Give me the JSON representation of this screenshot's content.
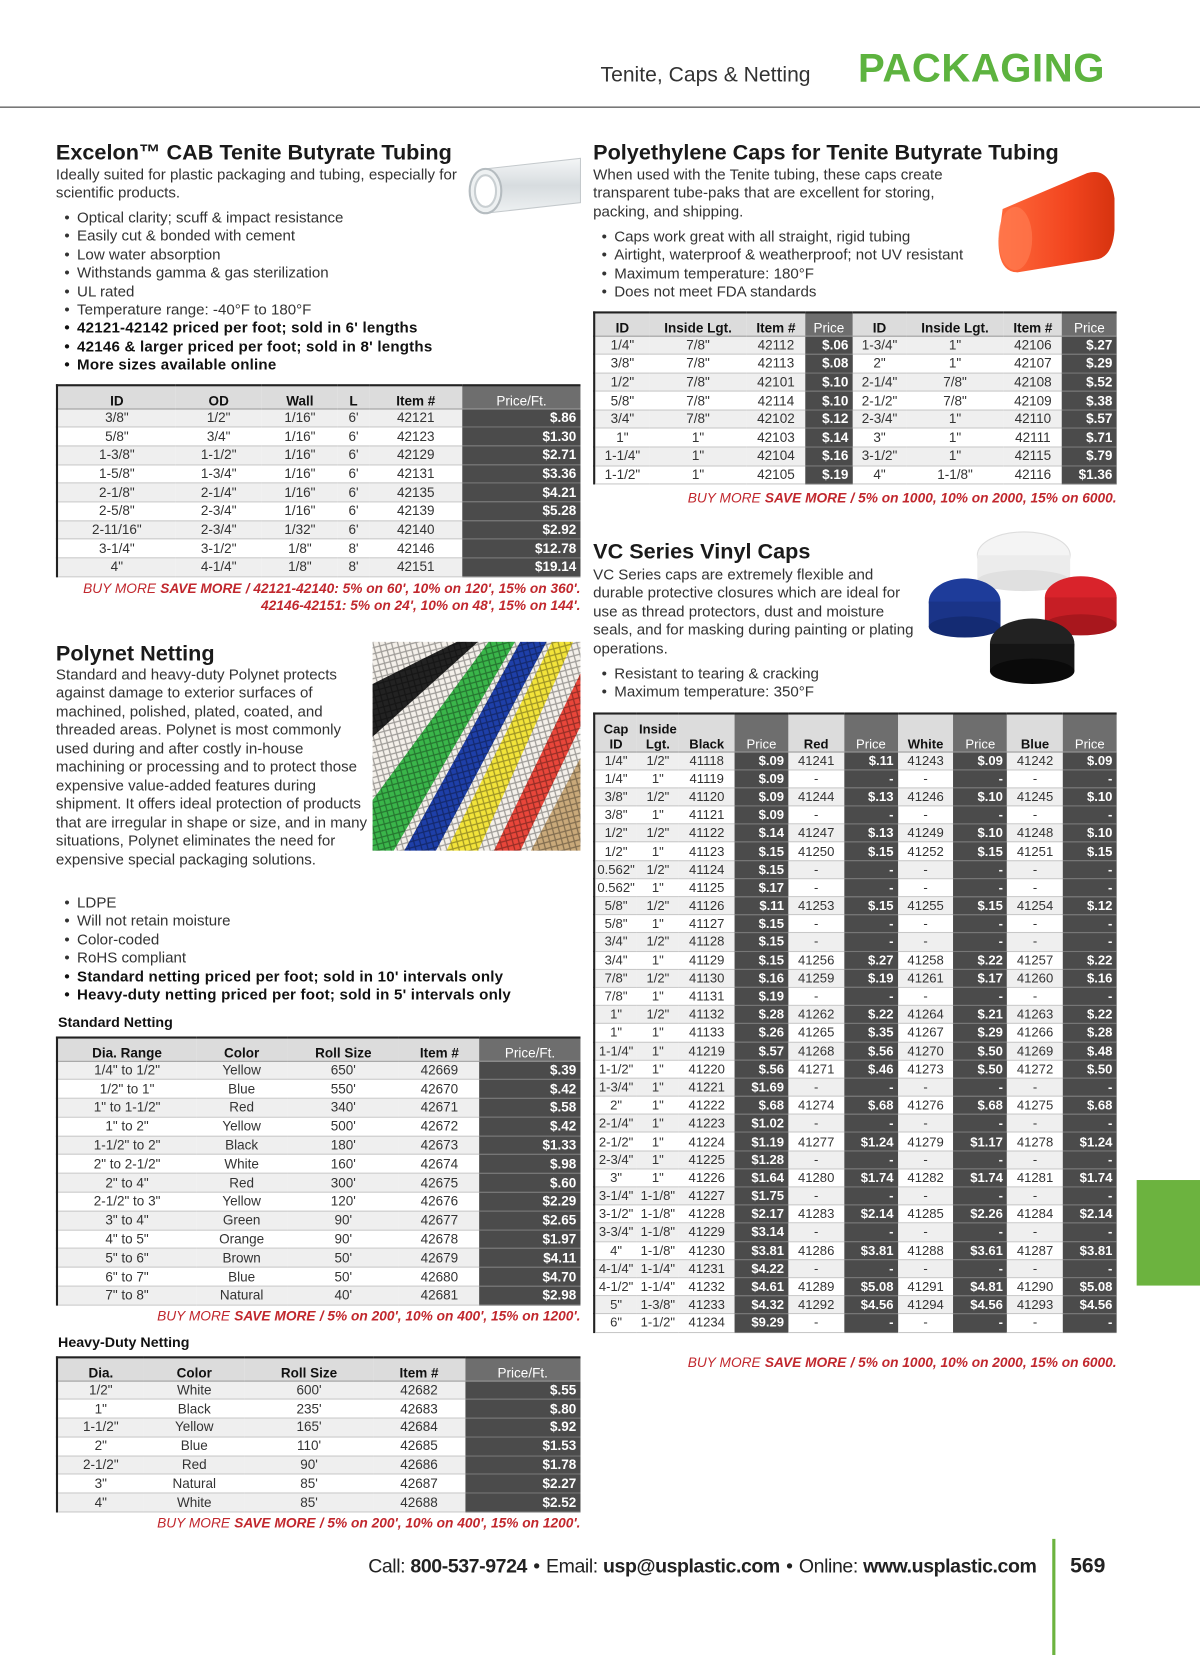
{
  "header": {
    "section": "Tenite, Caps & Netting",
    "title": "PACKAGING"
  },
  "excelon": {
    "title": "Excelon™ CAB Tenite Butyrate Tubing",
    "description": "Ideally suited for plastic packaging and tubing, especially for scientific products.",
    "bullets": [
      "Optical clarity; scuff & impact resistance",
      "Easily cut & bonded with cement",
      "Low water absorption",
      "Withstands gamma & gas sterilization",
      "UL rated",
      "Temperature range: -40°F to 180°F"
    ],
    "bold_bullets": [
      "42121-42142 priced per foot; sold in 6' lengths",
      "42146 & larger priced per foot; sold in 8' lengths",
      "More sizes available online"
    ],
    "table": {
      "headers": [
        "ID",
        "OD",
        "Wall",
        "L",
        "Item #",
        "Price/Ft."
      ],
      "rows": [
        [
          "3/8\"",
          "1/2\"",
          "1/16\"",
          "6'",
          "42121",
          "$.86"
        ],
        [
          "5/8\"",
          "3/4\"",
          "1/16\"",
          "6'",
          "42123",
          "$1.30"
        ],
        [
          "1-3/8\"",
          "1-1/2\"",
          "1/16\"",
          "6'",
          "42129",
          "$2.71"
        ],
        [
          "1-5/8\"",
          "1-3/4\"",
          "1/16\"",
          "6'",
          "42131",
          "$3.36"
        ],
        [
          "2-1/8\"",
          "2-1/4\"",
          "1/16\"",
          "6'",
          "42135",
          "$4.21"
        ],
        [
          "2-5/8\"",
          "2-3/4\"",
          "1/16\"",
          "6'",
          "42139",
          "$5.28"
        ],
        [
          "2-11/16\"",
          "2-3/4\"",
          "1/32\"",
          "6'",
          "42140",
          "$2.92"
        ],
        [
          "3-1/4\"",
          "3-1/2\"",
          "1/8\"",
          "8'",
          "42146",
          "$12.78"
        ],
        [
          "4\"",
          "4-1/4\"",
          "1/8\"",
          "8'",
          "42151",
          "$19.14"
        ]
      ]
    },
    "buy_more": {
      "lead": "BUY MORE",
      "emphasis": "SAVE MORE",
      "terms": [
        "/ 42121-42140: 5% on 60', 10% on 120', 15% on 360'.",
        "42146-42151: 5% on 24', 10% on 48', 15% on 144'."
      ]
    }
  },
  "polynet": {
    "title": "Polynet Netting",
    "description": "Standard and heavy-duty Polynet protects against damage to exterior surfaces of machined, polished, plated, coated, and threaded areas. Polynet is most commonly used during and after costly in-house machining or processing and to protect those expensive value-added features during shipment. It offers ideal protection of products that are irregular in shape or size, and in many situations, Polynet eliminates the need for expensive special packaging solutions.",
    "bullets": [
      "LDPE",
      "Will not retain moisture",
      "Color-coded",
      "RoHS compliant"
    ],
    "bold_bullets": [
      "Standard netting priced per foot; sold in 10' intervals only",
      "Heavy-duty netting priced per foot; sold in 5' intervals only"
    ],
    "standard": {
      "label": "Standard Netting",
      "table": {
        "headers": [
          "Dia. Range",
          "Color",
          "Roll Size",
          "Item #",
          "Price/Ft."
        ],
        "rows": [
          [
            "1/4\" to 1/2\"",
            "Yellow",
            "650'",
            "42669",
            "$.39"
          ],
          [
            "1/2\" to 1\"",
            "Blue",
            "550'",
            "42670",
            "$.42"
          ],
          [
            "1\" to 1-1/2\"",
            "Red",
            "340'",
            "42671",
            "$.58"
          ],
          [
            "1\" to 2\"",
            "Yellow",
            "500'",
            "42672",
            "$.42"
          ],
          [
            "1-1/2\" to 2\"",
            "Black",
            "180'",
            "42673",
            "$1.33"
          ],
          [
            "2\" to 2-1/2\"",
            "White",
            "160'",
            "42674",
            "$.98"
          ],
          [
            "2\" to 4\"",
            "Red",
            "300'",
            "42675",
            "$.60"
          ],
          [
            "2-1/2\" to 3\"",
            "Yellow",
            "120'",
            "42676",
            "$2.29"
          ],
          [
            "3\" to 4\"",
            "Green",
            "90'",
            "42677",
            "$2.65"
          ],
          [
            "4\" to 5\"",
            "Orange",
            "90'",
            "42678",
            "$1.97"
          ],
          [
            "5\" to 6\"",
            "Brown",
            "50'",
            "42679",
            "$4.11"
          ],
          [
            "6\" to 7\"",
            "Blue",
            "50'",
            "42680",
            "$4.70"
          ],
          [
            "7\" to 8\"",
            "Natural",
            "40'",
            "42681",
            "$2.98"
          ]
        ]
      },
      "buy_more": {
        "lead": "BUY MORE",
        "emphasis": "SAVE MORE",
        "terms": [
          "/ 5% on 200', 10% on 400', 15% on 1200'."
        ]
      }
    },
    "heavy_duty": {
      "label": "Heavy-Duty Netting",
      "table": {
        "headers": [
          "Dia.",
          "Color",
          "Roll Size",
          "Item #",
          "Price/Ft."
        ],
        "rows": [
          [
            "1/2\"",
            "White",
            "600'",
            "42682",
            "$.55"
          ],
          [
            "1\"",
            "Black",
            "235'",
            "42683",
            "$.80"
          ],
          [
            "1-1/2\"",
            "Yellow",
            "165'",
            "42684",
            "$.92"
          ],
          [
            "2\"",
            "Blue",
            "110'",
            "42685",
            "$1.53"
          ],
          [
            "2-1/2\"",
            "Red",
            "90'",
            "42686",
            "$1.78"
          ],
          [
            "3\"",
            "Natural",
            "85'",
            "42687",
            "$2.27"
          ],
          [
            "4\"",
            "White",
            "85'",
            "42688",
            "$2.52"
          ]
        ]
      },
      "buy_more": {
        "lead": "BUY MORE",
        "emphasis": "SAVE MORE",
        "terms": [
          "/ 5% on 200', 10% on 400', 15% on 1200'."
        ]
      }
    }
  },
  "poly_caps": {
    "title": "Polyethylene Caps for Tenite Butyrate Tubing",
    "description": "When used with the Tenite tubing, these caps create transparent tube-paks that are excellent for storing, packing, and shipping.",
    "bullets": [
      "Caps work great with all straight, rigid tubing",
      "Airtight, waterproof & weatherproof; not UV resistant",
      "Maximum temperature: 180°F",
      "Does not meet FDA standards"
    ],
    "table": {
      "headers": [
        "ID",
        "Inside Lgt.",
        "Item #",
        "Price",
        "ID",
        "Inside Lgt.",
        "Item #",
        "Price"
      ],
      "rows": [
        [
          "1/4\"",
          "7/8\"",
          "42112",
          "$.06",
          "1-3/4\"",
          "1\"",
          "42106",
          "$.27"
        ],
        [
          "3/8\"",
          "7/8\"",
          "42113",
          "$.08",
          "2\"",
          "1\"",
          "42107",
          "$.29"
        ],
        [
          "1/2\"",
          "7/8\"",
          "42101",
          "$.10",
          "2-1/4\"",
          "7/8\"",
          "42108",
          "$.52"
        ],
        [
          "5/8\"",
          "7/8\"",
          "42114",
          "$.10",
          "2-1/2\"",
          "7/8\"",
          "42109",
          "$.38"
        ],
        [
          "3/4\"",
          "7/8\"",
          "42102",
          "$.12",
          "2-3/4\"",
          "1\"",
          "42110",
          "$.57"
        ],
        [
          "1\"",
          "1\"",
          "42103",
          "$.14",
          "3\"",
          "1\"",
          "42111",
          "$.71"
        ],
        [
          "1-1/4\"",
          "1\"",
          "42104",
          "$.16",
          "3-1/2\"",
          "1\"",
          "42115",
          "$.79"
        ],
        [
          "1-1/2\"",
          "1\"",
          "42105",
          "$.19",
          "4\"",
          "1-1/8\"",
          "42116",
          "$1.36"
        ]
      ]
    },
    "buy_more": {
      "lead": "BUY MORE",
      "emphasis": "SAVE MORE",
      "terms": [
        "/ 5% on 1000, 10% on 2000, 15% on 6000."
      ]
    }
  },
  "vc_caps": {
    "title": "VC Series Vinyl Caps",
    "description": "VC Series caps are extremely flexible and durable protective closures which are ideal for use as thread protectors, dust and moisture seals, and for masking during painting or plating operations.",
    "bullets": [
      "Resistant to tearing & cracking",
      "Maximum temperature: 350°F"
    ],
    "table": {
      "headers": [
        "Cap ID",
        "Inside Lgt.",
        "Black",
        "Price",
        "Red",
        "Price",
        "White",
        "Price",
        "Blue",
        "Price"
      ],
      "rows": [
        [
          "1/4\"",
          "1/2\"",
          "41118",
          "$.09",
          "41241",
          "$.11",
          "41243",
          "$.09",
          "41242",
          "$.09"
        ],
        [
          "1/4\"",
          "1\"",
          "41119",
          "$.09",
          "-",
          "-",
          "-",
          "-",
          "-",
          "-"
        ],
        [
          "3/8\"",
          "1/2\"",
          "41120",
          "$.09",
          "41244",
          "$.13",
          "41246",
          "$.10",
          "41245",
          "$.10"
        ],
        [
          "3/8\"",
          "1\"",
          "41121",
          "$.09",
          "-",
          "-",
          "-",
          "-",
          "-",
          "-"
        ],
        [
          "1/2\"",
          "1/2\"",
          "41122",
          "$.14",
          "41247",
          "$.13",
          "41249",
          "$.10",
          "41248",
          "$.10"
        ],
        [
          "1/2\"",
          "1\"",
          "41123",
          "$.15",
          "41250",
          "$.15",
          "41252",
          "$.15",
          "41251",
          "$.15"
        ],
        [
          "0.562\"",
          "1/2\"",
          "41124",
          "$.15",
          "-",
          "-",
          "-",
          "-",
          "-",
          "-"
        ],
        [
          "0.562\"",
          "1\"",
          "41125",
          "$.17",
          "-",
          "-",
          "-",
          "-",
          "-",
          "-"
        ],
        [
          "5/8\"",
          "1/2\"",
          "41126",
          "$.11",
          "41253",
          "$.15",
          "41255",
          "$.15",
          "41254",
          "$.12"
        ],
        [
          "5/8\"",
          "1\"",
          "41127",
          "$.15",
          "-",
          "-",
          "-",
          "-",
          "-",
          "-"
        ],
        [
          "3/4\"",
          "1/2\"",
          "41128",
          "$.15",
          "-",
          "-",
          "-",
          "-",
          "-",
          "-"
        ],
        [
          "3/4\"",
          "1\"",
          "41129",
          "$.15",
          "41256",
          "$.27",
          "41258",
          "$.22",
          "41257",
          "$.22"
        ],
        [
          "7/8\"",
          "1/2\"",
          "41130",
          "$.16",
          "41259",
          "$.19",
          "41261",
          "$.17",
          "41260",
          "$.16"
        ],
        [
          "7/8\"",
          "1\"",
          "41131",
          "$.19",
          "-",
          "-",
          "-",
          "-",
          "-",
          "-"
        ],
        [
          "1\"",
          "1/2\"",
          "41132",
          "$.28",
          "41262",
          "$.22",
          "41264",
          "$.21",
          "41263",
          "$.22"
        ],
        [
          "1\"",
          "1\"",
          "41133",
          "$.26",
          "41265",
          "$.35",
          "41267",
          "$.29",
          "41266",
          "$.28"
        ],
        [
          "1-1/4\"",
          "1\"",
          "41219",
          "$.57",
          "41268",
          "$.56",
          "41270",
          "$.50",
          "41269",
          "$.48"
        ],
        [
          "1-1/2\"",
          "1\"",
          "41220",
          "$.56",
          "41271",
          "$.46",
          "41273",
          "$.50",
          "41272",
          "$.50"
        ],
        [
          "1-3/4\"",
          "1\"",
          "41221",
          "$1.69",
          "-",
          "-",
          "-",
          "-",
          "-",
          "-"
        ],
        [
          "2\"",
          "1\"",
          "41222",
          "$.68",
          "41274",
          "$.68",
          "41276",
          "$.68",
          "41275",
          "$.68"
        ],
        [
          "2-1/4\"",
          "1\"",
          "41223",
          "$1.02",
          "-",
          "-",
          "-",
          "-",
          "-",
          "-"
        ],
        [
          "2-1/2\"",
          "1\"",
          "41224",
          "$1.19",
          "41277",
          "$1.24",
          "41279",
          "$1.17",
          "41278",
          "$1.24"
        ],
        [
          "2-3/4\"",
          "1\"",
          "41225",
          "$1.28",
          "-",
          "-",
          "-",
          "-",
          "-",
          "-"
        ],
        [
          "3\"",
          "1\"",
          "41226",
          "$1.64",
          "41280",
          "$1.74",
          "41282",
          "$1.74",
          "41281",
          "$1.74"
        ],
        [
          "3-1/4\"",
          "1-1/8\"",
          "41227",
          "$1.75",
          "-",
          "-",
          "-",
          "-",
          "-",
          "-"
        ],
        [
          "3-1/2\"",
          "1-1/8\"",
          "41228",
          "$2.17",
          "41283",
          "$2.14",
          "41285",
          "$2.26",
          "41284",
          "$2.14"
        ],
        [
          "3-3/4\"",
          "1-1/8\"",
          "41229",
          "$3.14",
          "-",
          "-",
          "-",
          "-",
          "-",
          "-"
        ],
        [
          "4\"",
          "1-1/8\"",
          "41230",
          "$3.81",
          "41286",
          "$3.81",
          "41288",
          "$3.61",
          "41287",
          "$3.81"
        ],
        [
          "4-1/4\"",
          "1-1/4\"",
          "41231",
          "$4.22",
          "-",
          "-",
          "-",
          "-",
          "-",
          "-"
        ],
        [
          "4-1/2\"",
          "1-1/4\"",
          "41232",
          "$4.61",
          "41289",
          "$5.08",
          "41291",
          "$4.81",
          "41290",
          "$5.08"
        ],
        [
          "5\"",
          "1-3/8\"",
          "41233",
          "$4.32",
          "41292",
          "$4.56",
          "41294",
          "$4.56",
          "41293",
          "$4.56"
        ],
        [
          "6\"",
          "1-1/2\"",
          "41234",
          "$9.29",
          "-",
          "-",
          "-",
          "-",
          "-",
          "-"
        ]
      ]
    },
    "buy_more": {
      "lead": "BUY MORE",
      "emphasis": "SAVE MORE",
      "terms": [
        "/ 5% on 1000, 10% on 2000, 15% on 6000."
      ]
    }
  },
  "footer": {
    "call_label": "Call:",
    "phone": "800-537-9724",
    "email_label": "Email:",
    "email": "usp@usplastic.com",
    "online_label": "Online:",
    "website": "www.usplastic.com",
    "page_number": "569"
  }
}
